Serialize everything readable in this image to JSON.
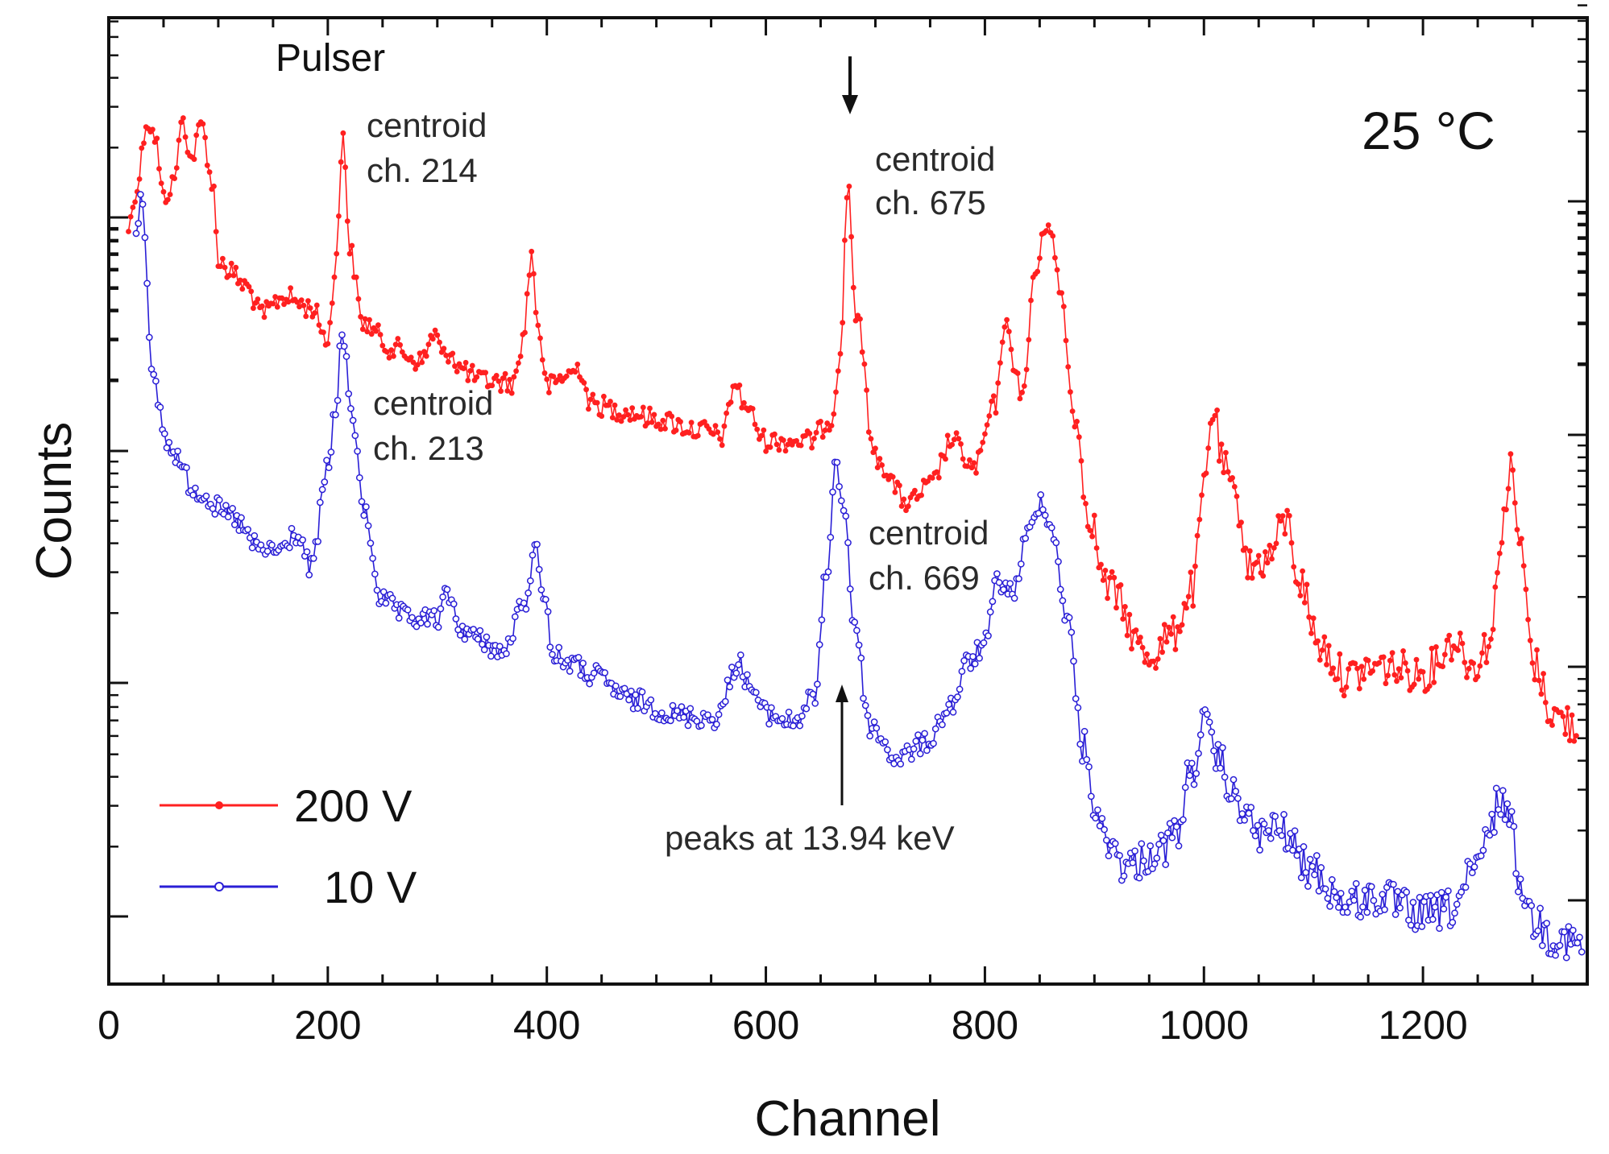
{
  "chart_data": {
    "type": "line",
    "xlabel": "Channel",
    "ylabel": "Counts",
    "xlim": [
      0,
      1350
    ],
    "x_ticks": [
      "0",
      "200",
      "400",
      "600",
      "800",
      "1000",
      "1200"
    ],
    "y_scale": "log (no tick labels shown)",
    "temperature_label": "25 °C",
    "colors": {
      "red": "#ff2020",
      "blue": "#2a1fd6",
      "axis": "#111111"
    },
    "series": [
      {
        "name": "200 V",
        "legend_label": "200 V",
        "color": "#ff2020",
        "marker": "filled-circle",
        "points": [
          [
            18,
            98
          ],
          [
            25,
            80
          ],
          [
            35,
            48
          ],
          [
            42,
            55
          ],
          [
            50,
            84
          ],
          [
            58,
            78
          ],
          [
            68,
            48
          ],
          [
            75,
            66
          ],
          [
            85,
            50
          ],
          [
            95,
            78
          ],
          [
            100,
            112
          ],
          [
            110,
            118
          ],
          [
            125,
            125
          ],
          [
            140,
            138
          ],
          [
            160,
            130
          ],
          [
            185,
            135
          ],
          [
            200,
            150
          ],
          [
            208,
            110
          ],
          [
            214,
            52
          ],
          [
            220,
            108
          ],
          [
            232,
            142
          ],
          [
            260,
            154
          ],
          [
            285,
            160
          ],
          [
            298,
            147
          ],
          [
            305,
            158
          ],
          [
            312,
            155
          ],
          [
            320,
            163
          ],
          [
            340,
            169
          ],
          [
            370,
            170
          ],
          [
            378,
            150
          ],
          [
            386,
            111
          ],
          [
            392,
            143
          ],
          [
            400,
            172
          ],
          [
            420,
            166
          ],
          [
            430,
            163
          ],
          [
            440,
            180
          ],
          [
            470,
            183
          ],
          [
            500,
            187
          ],
          [
            540,
            192
          ],
          [
            560,
            195
          ],
          [
            572,
            170
          ],
          [
            580,
            180
          ],
          [
            600,
            197
          ],
          [
            640,
            197
          ],
          [
            660,
            187
          ],
          [
            668,
            155
          ],
          [
            675,
            77
          ],
          [
            682,
            137
          ],
          [
            700,
            205
          ],
          [
            730,
            226
          ],
          [
            750,
            218
          ],
          [
            770,
            197
          ],
          [
            790,
            210
          ],
          [
            810,
            180
          ],
          [
            818,
            141
          ],
          [
            826,
            160
          ],
          [
            835,
            177
          ],
          [
            845,
            120
          ],
          [
            858,
            94
          ],
          [
            870,
            130
          ],
          [
            880,
            180
          ],
          [
            895,
            230
          ],
          [
            910,
            264
          ],
          [
            950,
            297
          ],
          [
            970,
            288
          ],
          [
            990,
            266
          ],
          [
            1000,
            220
          ],
          [
            1008,
            182
          ],
          [
            1018,
            210
          ],
          [
            1030,
            226
          ],
          [
            1042,
            256
          ],
          [
            1058,
            252
          ],
          [
            1075,
            234
          ],
          [
            1088,
            263
          ],
          [
            1105,
            292
          ],
          [
            1130,
            307
          ],
          [
            1160,
            302
          ],
          [
            1200,
            305
          ],
          [
            1230,
            290
          ],
          [
            1245,
            302
          ],
          [
            1262,
            290
          ],
          [
            1272,
            237
          ],
          [
            1280,
            211
          ],
          [
            1290,
            250
          ],
          [
            1300,
            300
          ],
          [
            1320,
            325
          ],
          [
            1340,
            330
          ]
        ]
      },
      {
        "name": "10 V",
        "legend_label": "10 V",
        "color": "#2a1fd6",
        "marker": "open-circle",
        "points": [
          [
            25,
            100
          ],
          [
            30,
            80
          ],
          [
            40,
            170
          ],
          [
            55,
            200
          ],
          [
            80,
            220
          ],
          [
            110,
            232
          ],
          [
            140,
            248
          ],
          [
            158,
            248
          ],
          [
            170,
            240
          ],
          [
            185,
            256
          ],
          [
            200,
            210
          ],
          [
            207,
            183
          ],
          [
            213,
            148
          ],
          [
            222,
            183
          ],
          [
            232,
            228
          ],
          [
            250,
            272
          ],
          [
            275,
            280
          ],
          [
            300,
            280
          ],
          [
            310,
            268
          ],
          [
            320,
            284
          ],
          [
            340,
            290
          ],
          [
            360,
            296
          ],
          [
            378,
            275
          ],
          [
            390,
            248
          ],
          [
            398,
            268
          ],
          [
            405,
            297
          ],
          [
            420,
            300
          ],
          [
            440,
            306
          ],
          [
            480,
            318
          ],
          [
            520,
            325
          ],
          [
            555,
            326
          ],
          [
            575,
            300
          ],
          [
            585,
            311
          ],
          [
            600,
            324
          ],
          [
            625,
            328
          ],
          [
            645,
            316
          ],
          [
            655,
            260
          ],
          [
            664,
            208
          ],
          [
            672,
            230
          ],
          [
            680,
            280
          ],
          [
            695,
            330
          ],
          [
            720,
            345
          ],
          [
            745,
            338
          ],
          [
            770,
            320
          ],
          [
            785,
            300
          ],
          [
            800,
            292
          ],
          [
            812,
            262
          ],
          [
            825,
            268
          ],
          [
            840,
            240
          ],
          [
            852,
            224
          ],
          [
            862,
            240
          ],
          [
            875,
            280
          ],
          [
            890,
            340
          ],
          [
            905,
            378
          ],
          [
            930,
            395
          ],
          [
            960,
            388
          ],
          [
            975,
            380
          ],
          [
            988,
            352
          ],
          [
            1000,
            330
          ],
          [
            1012,
            345
          ],
          [
            1030,
            365
          ],
          [
            1050,
            380
          ],
          [
            1070,
            378
          ],
          [
            1095,
            396
          ],
          [
            1130,
            412
          ],
          [
            1160,
            410
          ],
          [
            1200,
            418
          ],
          [
            1225,
            415
          ],
          [
            1248,
            398
          ],
          [
            1262,
            378
          ],
          [
            1270,
            362
          ],
          [
            1278,
            370
          ],
          [
            1288,
            400
          ],
          [
            1300,
            420
          ],
          [
            1320,
            428
          ],
          [
            1345,
            432
          ]
        ]
      }
    ],
    "annotations": {
      "pulser": "Pulser",
      "red_c1": [
        "centroid",
        "ch. 214"
      ],
      "red_c2": [
        "centroid",
        "ch. 675"
      ],
      "blue_c1": [
        "centroid",
        "ch. 213"
      ],
      "blue_c2": [
        "centroid",
        "ch. 669"
      ],
      "peaks_note": "peaks at 13.94 keV"
    }
  }
}
